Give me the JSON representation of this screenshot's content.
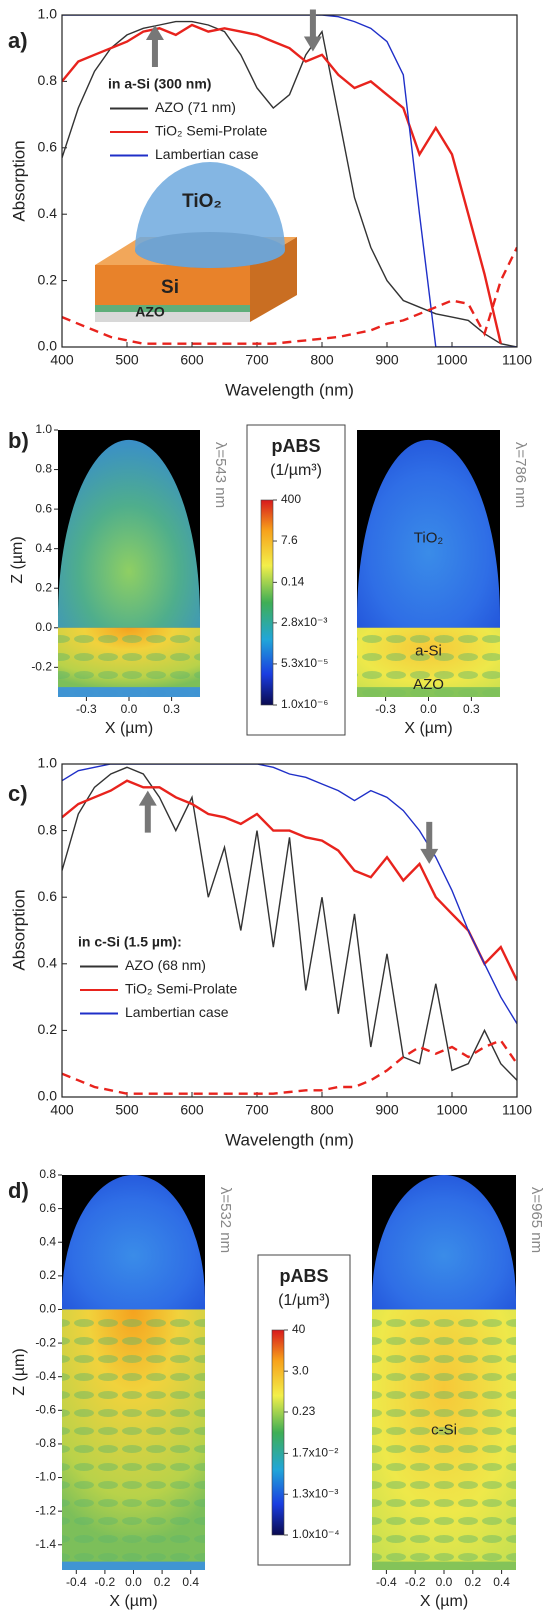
{
  "chart_data": [
    {
      "type": "line",
      "panel_label": "a)",
      "xlabel": "Wavelength (nm)",
      "ylabel": "Absorption",
      "xlim": [
        400,
        1100
      ],
      "ylim": [
        0,
        1
      ],
      "xticks": [
        400,
        500,
        600,
        700,
        800,
        900,
        1000,
        1100
      ],
      "yticks": [
        {
          "value": 0,
          "label": "0.0"
        },
        0.2,
        0.4,
        0.6,
        0.8,
        {
          "value": 1,
          "label": "1.0"
        }
      ],
      "legend_title": "in a-Si (300 nm)",
      "inset_labels": [
        "TiO₂",
        "Si",
        "AZO"
      ],
      "x": [
        400,
        425,
        450,
        475,
        500,
        525,
        550,
        575,
        600,
        625,
        650,
        675,
        700,
        725,
        750,
        775,
        800,
        825,
        850,
        875,
        900,
        925,
        950,
        975,
        1000,
        1025,
        1050,
        1075,
        1100
      ],
      "series": [
        {
          "name": "AZO (71 nm)",
          "color": "#333333",
          "values": [
            0.57,
            0.72,
            0.83,
            0.9,
            0.94,
            0.96,
            0.97,
            0.98,
            0.98,
            0.97,
            0.95,
            0.88,
            0.78,
            0.72,
            0.76,
            0.88,
            0.95,
            0.7,
            0.45,
            0.3,
            0.2,
            0.14,
            0.12,
            0.1,
            0.09,
            0.08,
            0.04,
            0.01,
            0.0
          ]
        },
        {
          "name": "TiO₂ Semi-Prolate",
          "color": "#e8231d",
          "values": [
            0.8,
            0.86,
            0.88,
            0.9,
            0.92,
            0.95,
            0.96,
            0.94,
            0.97,
            0.95,
            0.96,
            0.95,
            0.94,
            0.92,
            0.9,
            0.86,
            0.88,
            0.82,
            0.78,
            0.8,
            0.76,
            0.72,
            0.58,
            0.66,
            0.58,
            0.4,
            0.22,
            0.01,
            null
          ]
        },
        {
          "name": "Lambertian case",
          "color": "#1f2fc8",
          "values": [
            1,
            1,
            1,
            1,
            1,
            1,
            1,
            1,
            1,
            1,
            1,
            1,
            1,
            1,
            1,
            1,
            1,
            0.995,
            0.98,
            0.96,
            0.92,
            0.82,
            0.4,
            0,
            0,
            0,
            0,
            0,
            0
          ]
        },
        {
          "color": "#e8231d",
          "dashed": true,
          "values": [
            0.09,
            0.07,
            0.05,
            0.03,
            0.02,
            0.01,
            0.01,
            0.01,
            0.01,
            0.01,
            0.01,
            0.01,
            0.01,
            0.01,
            0.015,
            0.02,
            0.025,
            0.03,
            0.04,
            0.05,
            0.07,
            0.08,
            0.1,
            0.12,
            0.14,
            0.13,
            0.04,
            0.2,
            0.3
          ]
        }
      ],
      "arrows": [
        {
          "x": 543,
          "y": 0.97,
          "direction": "up"
        },
        {
          "x": 786,
          "y": 0.89,
          "direction": "down"
        }
      ]
    },
    {
      "type": "heatmap",
      "panel_label": "b)",
      "xlabel": "X (µm)",
      "ylabel": "Z (µm)",
      "xlim": [
        -0.5,
        0.5
      ],
      "ylim": [
        -0.35,
        1
      ],
      "xticks": [
        -0.3,
        {
          "value": 0,
          "label": "0.0"
        },
        0.3
      ],
      "yticks": [
        {
          "value": 1,
          "label": "1.0"
        },
        0.8,
        0.6,
        0.4,
        0.2,
        {
          "value": 0,
          "label": "0.0"
        },
        -0.2
      ],
      "colorbar": {
        "title": "pABS",
        "units": "(1/µm³)",
        "log": true,
        "clim": [
          1e-06,
          400
        ],
        "ticks": [
          400,
          7.6,
          0.14,
          {
            "value": 0.0028,
            "label": "2.8x10⁻³"
          },
          {
            "value": 5.3e-05,
            "label": "5.3x10⁻⁵"
          },
          {
            "value": 1e-06,
            "label": "1.0x10⁻⁶"
          }
        ]
      },
      "maps": [
        {
          "wavelength_label": "λ=543 nm",
          "yaxis": true,
          "region_labels": []
        },
        {
          "wavelength_label": "λ=786 nm",
          "yaxis": false,
          "region_labels": [
            "TiO₂",
            "a-Si",
            "AZO"
          ]
        }
      ]
    },
    {
      "type": "line",
      "panel_label": "c)",
      "xlabel": "Wavelength (nm)",
      "ylabel": "Absorption",
      "xlim": [
        400,
        1100
      ],
      "ylim": [
        0,
        1
      ],
      "xticks": [
        400,
        500,
        600,
        700,
        800,
        900,
        1000,
        1100
      ],
      "yticks": [
        {
          "value": 0,
          "label": "0.0"
        },
        0.2,
        0.4,
        0.6,
        0.8,
        {
          "value": 1,
          "label": "1.0"
        }
      ],
      "legend_title": "in c-Si (1.5 µm):",
      "x": [
        400,
        425,
        450,
        475,
        500,
        525,
        550,
        575,
        600,
        625,
        650,
        675,
        700,
        725,
        750,
        775,
        800,
        825,
        850,
        875,
        900,
        925,
        950,
        975,
        1000,
        1025,
        1050,
        1075,
        1100
      ],
      "series": [
        {
          "name": "AZO (68 nm)",
          "color": "#333333",
          "values": [
            0.68,
            0.85,
            0.93,
            0.97,
            0.99,
            0.97,
            0.9,
            0.8,
            0.9,
            0.6,
            0.75,
            0.5,
            0.8,
            0.45,
            0.78,
            0.32,
            0.6,
            0.25,
            0.55,
            0.15,
            0.43,
            0.12,
            0.1,
            0.34,
            0.08,
            0.1,
            0.2,
            0.1,
            0.05
          ]
        },
        {
          "name": "TiO₂ Semi-Prolate",
          "color": "#e8231d",
          "values": [
            0.84,
            0.88,
            0.9,
            0.92,
            0.95,
            0.93,
            0.93,
            0.9,
            0.88,
            0.85,
            0.84,
            0.82,
            0.85,
            0.8,
            0.8,
            0.78,
            0.77,
            0.74,
            0.68,
            0.66,
            0.72,
            0.65,
            0.7,
            0.6,
            0.55,
            0.5,
            0.4,
            0.45,
            0.35
          ]
        },
        {
          "name": "Lambertian case",
          "color": "#1f2fc8",
          "values": [
            0.95,
            0.98,
            0.99,
            1,
            1,
            1,
            1,
            1,
            1,
            1,
            1,
            1,
            1,
            0.99,
            0.97,
            0.96,
            0.94,
            0.92,
            0.89,
            0.92,
            0.9,
            0.86,
            0.8,
            0.72,
            0.62,
            0.5,
            0.4,
            0.3,
            0.22
          ]
        },
        {
          "color": "#e8231d",
          "dashed": true,
          "values": [
            0.07,
            0.05,
            0.03,
            0.02,
            0.01,
            0.01,
            0.01,
            0.01,
            0.01,
            0.01,
            0.01,
            0.01,
            0.01,
            0.01,
            0.015,
            0.02,
            0.02,
            0.03,
            0.03,
            0.05,
            0.08,
            0.12,
            0.15,
            0.13,
            0.15,
            0.12,
            0.15,
            0.17,
            0.1
          ]
        }
      ],
      "arrows": [
        {
          "x": 532,
          "y": 0.92,
          "direction": "up"
        },
        {
          "x": 965,
          "y": 0.7,
          "direction": "down"
        }
      ]
    },
    {
      "type": "heatmap",
      "panel_label": "d)",
      "xlabel": "X (µm)",
      "ylabel": "Z (µm)",
      "xlim": [
        -0.5,
        0.5
      ],
      "ylim": [
        -1.55,
        0.8
      ],
      "xticks": [
        -0.4,
        -0.2,
        {
          "value": 0,
          "label": "0.0"
        },
        0.2,
        0.4
      ],
      "yticks": [
        0.8,
        0.6,
        0.4,
        0.2,
        {
          "value": 0,
          "label": "0.0"
        },
        -0.2,
        -0.4,
        -0.6,
        -0.8,
        {
          "value": -1,
          "label": "-1.0"
        },
        -1.2,
        -1.4
      ],
      "colorbar": {
        "title": "pABS",
        "units": "(1/µm³)",
        "log": true,
        "clim": [
          0.0001,
          40
        ],
        "ticks": [
          40,
          {
            "value": 3,
            "label": "3.0"
          },
          0.23,
          {
            "value": 0.017,
            "label": "1.7x10⁻²"
          },
          {
            "value": 0.0013,
            "label": "1.3x10⁻³"
          },
          {
            "value": 0.0001,
            "label": "1.0x10⁻⁴"
          }
        ]
      },
      "maps": [
        {
          "wavelength_label": "λ=532 nm",
          "yaxis": true,
          "region_labels": []
        },
        {
          "wavelength_label": "λ=965 nm",
          "yaxis": false,
          "region_labels": [
            "c-Si"
          ]
        }
      ]
    }
  ]
}
